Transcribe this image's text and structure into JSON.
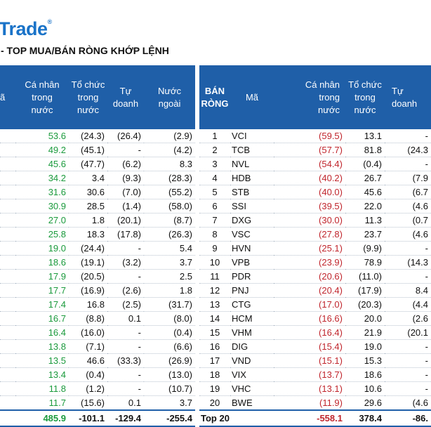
{
  "brand": {
    "name": "Trade",
    "reg": "®"
  },
  "subtitle": "- TOP MUA/BÁN RÒNG KHỚP LỆNH",
  "buy": {
    "headers": {
      "code": "ã",
      "individual": "Cá nhân\ntrong\nnước",
      "institution": "Tổ chức\ntrong\nnước",
      "proprietary": "Tự\ndoanh",
      "foreign": "Nước\nngoài"
    },
    "rows": [
      {
        "individual": "53.6",
        "institution": "(24.3)",
        "proprietary": "(26.4)",
        "foreign": "(2.9)"
      },
      {
        "individual": "49.2",
        "institution": "(45.1)",
        "proprietary": "-",
        "foreign": "(4.2)"
      },
      {
        "individual": "45.6",
        "institution": "(47.7)",
        "proprietary": "(6.2)",
        "foreign": "8.3"
      },
      {
        "individual": "34.2",
        "institution": "3.4",
        "proprietary": "(9.3)",
        "foreign": "(28.3)"
      },
      {
        "individual": "31.6",
        "institution": "30.6",
        "proprietary": "(7.0)",
        "foreign": "(55.2)"
      },
      {
        "individual": "30.9",
        "institution": "28.5",
        "proprietary": "(1.4)",
        "foreign": "(58.0)"
      },
      {
        "individual": "27.0",
        "institution": "1.8",
        "proprietary": "(20.1)",
        "foreign": "(8.7)"
      },
      {
        "individual": "25.8",
        "institution": "18.3",
        "proprietary": "(17.8)",
        "foreign": "(26.3)"
      },
      {
        "individual": "19.0",
        "institution": "(24.4)",
        "proprietary": "-",
        "foreign": "5.4"
      },
      {
        "individual": "18.6",
        "institution": "(19.1)",
        "proprietary": "(3.2)",
        "foreign": "3.7"
      },
      {
        "individual": "17.9",
        "institution": "(20.5)",
        "proprietary": "-",
        "foreign": "2.5"
      },
      {
        "individual": "17.7",
        "institution": "(16.9)",
        "proprietary": "(2.6)",
        "foreign": "1.8"
      },
      {
        "individual": "17.4",
        "institution": "16.8",
        "proprietary": "(2.5)",
        "foreign": "(31.7)"
      },
      {
        "individual": "16.7",
        "institution": "(8.8)",
        "proprietary": "0.1",
        "foreign": "(8.0)"
      },
      {
        "individual": "16.4",
        "institution": "(16.0)",
        "proprietary": "-",
        "foreign": "(0.4)"
      },
      {
        "individual": "13.8",
        "institution": "(7.1)",
        "proprietary": "-",
        "foreign": "(6.6)"
      },
      {
        "individual": "13.5",
        "institution": "46.6",
        "proprietary": "(33.3)",
        "foreign": "(26.9)"
      },
      {
        "individual": "13.4",
        "institution": "(0.4)",
        "proprietary": "-",
        "foreign": "(13.0)"
      },
      {
        "individual": "11.8",
        "institution": "(1.2)",
        "proprietary": "-",
        "foreign": "(10.7)"
      },
      {
        "individual": "11.7",
        "institution": "(15.6)",
        "proprietary": "0.1",
        "foreign": "3.7"
      }
    ],
    "total": {
      "individual": "485.9",
      "institution": "-101.1",
      "proprietary": "-129.4",
      "foreign": "-255.4"
    }
  },
  "sell": {
    "headers": {
      "rank": "BÁN\nRÒNG",
      "code": "Mã",
      "individual": "Cá nhân\ntrong\nnước",
      "institution": "Tổ chức\ntrong\nnước",
      "proprietary": "Tự\ndoanh"
    },
    "rows": [
      {
        "rank": "1",
        "code": "VCI",
        "individual": "(59.5)",
        "institution": "13.1",
        "proprietary": "-"
      },
      {
        "rank": "2",
        "code": "TCB",
        "individual": "(57.7)",
        "institution": "81.8",
        "proprietary": "(24.3"
      },
      {
        "rank": "3",
        "code": "NVL",
        "individual": "(54.4)",
        "institution": "(0.4)",
        "proprietary": "-"
      },
      {
        "rank": "4",
        "code": "HDB",
        "individual": "(40.2)",
        "institution": "26.7",
        "proprietary": "(7.9"
      },
      {
        "rank": "5",
        "code": "STB",
        "individual": "(40.0)",
        "institution": "45.6",
        "proprietary": "(6.7"
      },
      {
        "rank": "6",
        "code": "SSI",
        "individual": "(39.5)",
        "institution": "22.0",
        "proprietary": "(4.6"
      },
      {
        "rank": "7",
        "code": "DXG",
        "individual": "(30.0)",
        "institution": "11.3",
        "proprietary": "(0.7"
      },
      {
        "rank": "8",
        "code": "VSC",
        "individual": "(27.8)",
        "institution": "23.7",
        "proprietary": "(4.6"
      },
      {
        "rank": "9",
        "code": "HVN",
        "individual": "(25.1)",
        "institution": "(9.9)",
        "proprietary": "-"
      },
      {
        "rank": "10",
        "code": "VPB",
        "individual": "(23.9)",
        "institution": "78.9",
        "proprietary": "(14.3"
      },
      {
        "rank": "11",
        "code": "PDR",
        "individual": "(20.6)",
        "institution": "(11.0)",
        "proprietary": "-"
      },
      {
        "rank": "12",
        "code": "PNJ",
        "individual": "(20.4)",
        "institution": "(17.9)",
        "proprietary": "8.4"
      },
      {
        "rank": "13",
        "code": "CTG",
        "individual": "(17.0)",
        "institution": "(20.3)",
        "proprietary": "(4.4"
      },
      {
        "rank": "14",
        "code": "HCM",
        "individual": "(16.6)",
        "institution": "20.0",
        "proprietary": "(2.6"
      },
      {
        "rank": "15",
        "code": "VHM",
        "individual": "(16.4)",
        "institution": "21.9",
        "proprietary": "(20.1"
      },
      {
        "rank": "16",
        "code": "DIG",
        "individual": "(15.4)",
        "institution": "19.0",
        "proprietary": "-"
      },
      {
        "rank": "17",
        "code": "VND",
        "individual": "(15.1)",
        "institution": "15.3",
        "proprietary": "-"
      },
      {
        "rank": "18",
        "code": "VIX",
        "individual": "(13.7)",
        "institution": "18.6",
        "proprietary": "-"
      },
      {
        "rank": "19",
        "code": "VHC",
        "individual": "(13.1)",
        "institution": "10.6",
        "proprietary": "-"
      },
      {
        "rank": "20",
        "code": "BWE",
        "individual": "(11.9)",
        "institution": "29.6",
        "proprietary": "(4.6"
      }
    ],
    "total": {
      "label": "Top 20",
      "individual": "-558.1",
      "institution": "378.4",
      "proprietary": "-86."
    }
  },
  "colors": {
    "header": "#1f5fa8",
    "positive": "#1a9a3c",
    "negative": "#c0262d",
    "brand": "#1a73c8"
  }
}
